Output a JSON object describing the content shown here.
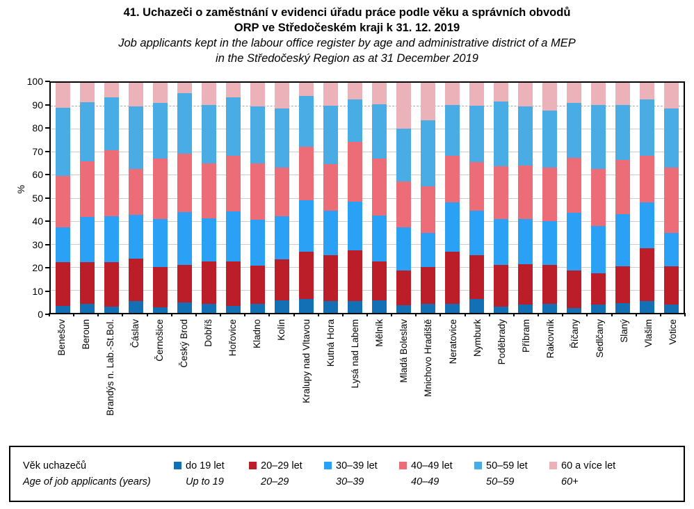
{
  "title": {
    "line1_cs": "41. Uchazeči o zaměstnání v evidenci úřadu práce podle věku a správních obvodů",
    "line2_cs": "ORP ve Středočeském kraji k 31. 12. 2019",
    "line1_en": "Job applicants kept in the labour office register by age and administrative district of a MEP",
    "line2_en": "in the Středočeský Region as at 31 December 2019"
  },
  "chart_data": {
    "type": "bar",
    "stacked": true,
    "unit": "%",
    "ylabel": "%",
    "ylim": [
      0,
      100
    ],
    "ytick_interval": 10,
    "grid": "horizontal",
    "dashed_gridline_at": 90,
    "legend_position": "bottom",
    "legend_title_cs": "Věk uchazečů",
    "legend_title_en": "Age of job applicants (years)",
    "categories": [
      "Benešov",
      "Beroun",
      "Brandýs n. Lab.-St.Bol.",
      "Čáslav",
      "Černošice",
      "Český Brod",
      "Dobříš",
      "Hořovice",
      "Kladno",
      "Kolín",
      "Kralupy nad Vltavou",
      "Kutná Hora",
      "Lysá nad Labem",
      "Mělník",
      "Mladá Boleslav",
      "Mnichovo Hradiště",
      "Neratovice",
      "Nymburk",
      "Poděbrady",
      "Příbram",
      "Rakovník",
      "Říčany",
      "Sedlčany",
      "Slaný",
      "Vlašim",
      "Votice"
    ],
    "series": [
      {
        "name_cs": "do 19 let",
        "name_en": "Up to 19",
        "color": "#1470B5",
        "values": [
          3.0,
          4.0,
          2.8,
          5.0,
          2.3,
          4.5,
          4.0,
          3.0,
          3.8,
          5.5,
          6.0,
          5.0,
          5.0,
          5.5,
          3.3,
          3.8,
          4.0,
          6.0,
          2.8,
          3.5,
          4.0,
          2.0,
          3.5,
          4.3,
          5.0,
          3.5
        ]
      },
      {
        "name_cs": "20–29 let",
        "name_en": "20–29",
        "color": "#BB1E28",
        "values": [
          19.1,
          18.0,
          19.2,
          18.7,
          17.5,
          16.5,
          18.5,
          19.3,
          16.8,
          17.9,
          20.7,
          20.2,
          22.2,
          16.8,
          15.2,
          16.2,
          22.7,
          19.2,
          18.0,
          17.8,
          17.0,
          16.5,
          13.8,
          16.0,
          23.2,
          16.8
        ]
      },
      {
        "name_cs": "30–39 let",
        "name_en": "30–39",
        "color": "#2BA1F6",
        "values": [
          15.1,
          19.7,
          19.9,
          19.0,
          21.1,
          22.9,
          18.5,
          21.9,
          19.9,
          18.5,
          22.2,
          19.3,
          21.0,
          19.9,
          18.7,
          14.7,
          21.2,
          19.2,
          19.9,
          19.6,
          18.9,
          25.0,
          20.4,
          22.6,
          19.7,
          14.6
        ]
      },
      {
        "name_cs": "40–49 let",
        "name_en": "40–49",
        "color": "#EC6D77",
        "values": [
          22.2,
          24.3,
          28.9,
          19.7,
          26.3,
          25.3,
          24.0,
          24.0,
          24.4,
          21.3,
          23.3,
          20.2,
          26.2,
          24.8,
          20.0,
          20.2,
          20.5,
          21.3,
          23.0,
          23.3,
          23.3,
          24.0,
          24.7,
          23.6,
          20.5,
          28.3
        ]
      },
      {
        "name_cs": "50–59 let",
        "name_en": "50–59",
        "color": "#4AACE4",
        "values": [
          29.7,
          25.5,
          23.0,
          27.2,
          24.2,
          26.2,
          25.3,
          25.4,
          24.9,
          25.6,
          22.2,
          25.4,
          18.4,
          23.6,
          22.9,
          28.9,
          22.0,
          24.4,
          28.1,
          25.6,
          24.6,
          23.6,
          28.0,
          23.9,
          24.5,
          25.6
        ]
      },
      {
        "name_cs": "60 a více let",
        "name_en": "60+",
        "color": "#ECB2BA",
        "values": [
          10.9,
          8.5,
          6.2,
          10.4,
          8.6,
          4.6,
          9.7,
          6.4,
          10.2,
          11.2,
          5.6,
          9.9,
          7.2,
          9.4,
          19.9,
          16.2,
          9.6,
          9.9,
          8.2,
          10.2,
          12.2,
          8.9,
          9.6,
          9.6,
          7.1,
          11.2
        ]
      }
    ]
  },
  "y_axis": {
    "ticks": [
      0,
      10,
      20,
      30,
      40,
      50,
      60,
      70,
      80,
      90,
      100
    ]
  }
}
